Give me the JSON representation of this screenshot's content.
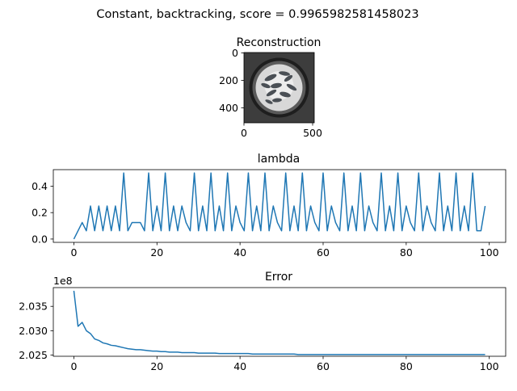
{
  "figure": {
    "suptitle": "Constant, backtracking, score = 0.9965982581458023"
  },
  "image_panel": {
    "title": "Reconstruction",
    "xticks": [
      "0",
      "500"
    ],
    "yticks": [
      "0",
      "200",
      "400"
    ],
    "description_colors": {
      "background": "#3c3c3c",
      "rim": "#1e1e1e",
      "disc": "#e6e6e6",
      "blob": "#4a4f55"
    }
  },
  "chart_data": [
    {
      "type": "line",
      "title": "lambda",
      "xlabel": "",
      "ylabel": "",
      "xlim": [
        -4.95,
        103.95
      ],
      "ylim": [
        -0.025,
        0.525
      ],
      "xticks": [
        0,
        20,
        40,
        60,
        80,
        100
      ],
      "yticks": [
        0.0,
        0.2,
        0.4
      ],
      "ytick_labels": [
        "0.0",
        "0.2",
        "0.4"
      ],
      "color": "#1f77b4",
      "x": [
        0,
        1,
        2,
        3,
        4,
        5,
        6,
        7,
        8,
        9,
        10,
        11,
        12,
        13,
        14,
        15,
        16,
        17,
        18,
        19,
        20,
        21,
        22,
        23,
        24,
        25,
        26,
        27,
        28,
        29,
        30,
        31,
        32,
        33,
        34,
        35,
        36,
        37,
        38,
        39,
        40,
        41,
        42,
        43,
        44,
        45,
        46,
        47,
        48,
        49,
        50,
        51,
        52,
        53,
        54,
        55,
        56,
        57,
        58,
        59,
        60,
        61,
        62,
        63,
        64,
        65,
        66,
        67,
        68,
        69,
        70,
        71,
        72,
        73,
        74,
        75,
        76,
        77,
        78,
        79,
        80,
        81,
        82,
        83,
        84,
        85,
        86,
        87,
        88,
        89,
        90,
        91,
        92,
        93,
        94,
        95,
        96,
        97,
        98,
        99
      ],
      "y": [
        0.0,
        0.0625,
        0.125,
        0.0625,
        0.25,
        0.0625,
        0.25,
        0.0625,
        0.25,
        0.0625,
        0.25,
        0.0625,
        0.5,
        0.0625,
        0.125,
        0.125,
        0.125,
        0.0625,
        0.5,
        0.0625,
        0.25,
        0.0625,
        0.5,
        0.0625,
        0.25,
        0.0625,
        0.25,
        0.125,
        0.0625,
        0.5,
        0.0625,
        0.25,
        0.0625,
        0.5,
        0.0625,
        0.25,
        0.0625,
        0.5,
        0.0625,
        0.25,
        0.125,
        0.0625,
        0.5,
        0.0625,
        0.25,
        0.0625,
        0.5,
        0.0625,
        0.25,
        0.125,
        0.0625,
        0.5,
        0.0625,
        0.25,
        0.0625,
        0.5,
        0.0625,
        0.25,
        0.125,
        0.0625,
        0.5,
        0.0625,
        0.25,
        0.125,
        0.0625,
        0.5,
        0.0625,
        0.25,
        0.0625,
        0.5,
        0.0625,
        0.25,
        0.125,
        0.0625,
        0.5,
        0.0625,
        0.25,
        0.0625,
        0.5,
        0.0625,
        0.25,
        0.125,
        0.0625,
        0.5,
        0.0625,
        0.25,
        0.125,
        0.0625,
        0.5,
        0.0625,
        0.25,
        0.0625,
        0.5,
        0.0625,
        0.25,
        0.0625,
        0.5,
        0.0625,
        0.0625,
        0.25
      ]
    },
    {
      "type": "line",
      "title": "Error",
      "xlabel": "",
      "ylabel": "",
      "offset_label": "1e8",
      "xlim": [
        -4.95,
        103.95
      ],
      "ylim": [
        2.02475,
        2.03885
      ],
      "xticks": [
        0,
        20,
        40,
        60,
        80,
        100
      ],
      "yticks": [
        2.025,
        2.03,
        2.035
      ],
      "ytick_labels": [
        "2.025",
        "2.030",
        "2.035"
      ],
      "color": "#1f77b4",
      "x": [
        0,
        1,
        2,
        3,
        4,
        5,
        6,
        7,
        8,
        9,
        10,
        11,
        12,
        13,
        14,
        15,
        16,
        17,
        18,
        19,
        20,
        21,
        22,
        23,
        24,
        25,
        26,
        27,
        28,
        29,
        30,
        31,
        32,
        33,
        34,
        35,
        36,
        37,
        38,
        39,
        40,
        41,
        42,
        43,
        44,
        45,
        46,
        47,
        48,
        49,
        50,
        51,
        52,
        53,
        54,
        55,
        56,
        57,
        58,
        59,
        60,
        61,
        62,
        63,
        64,
        65,
        66,
        67,
        68,
        69,
        70,
        71,
        72,
        73,
        74,
        75,
        76,
        77,
        78,
        79,
        80,
        81,
        82,
        83,
        84,
        85,
        86,
        87,
        88,
        89,
        90,
        91,
        92,
        93,
        94,
        95,
        96,
        97,
        98,
        99
      ],
      "y": [
        2.0382,
        2.0309,
        2.0317,
        2.03,
        2.0294,
        2.0283,
        2.028,
        2.0275,
        2.0273,
        2.027,
        2.0269,
        2.0267,
        2.0265,
        2.0263,
        2.0262,
        2.0261,
        2.0261,
        2.026,
        2.0259,
        2.0258,
        2.0258,
        2.0257,
        2.0257,
        2.0256,
        2.0256,
        2.0256,
        2.0255,
        2.0255,
        2.0255,
        2.0255,
        2.0254,
        2.0254,
        2.0254,
        2.0254,
        2.0254,
        2.0253,
        2.0253,
        2.0253,
        2.0253,
        2.0253,
        2.0253,
        2.0253,
        2.0253,
        2.0252,
        2.0252,
        2.0252,
        2.0252,
        2.0252,
        2.0252,
        2.0252,
        2.0252,
        2.0252,
        2.0252,
        2.0252,
        2.0251,
        2.0251,
        2.0251,
        2.0251,
        2.0251,
        2.0251,
        2.0251,
        2.0251,
        2.0251,
        2.0251,
        2.0251,
        2.0251,
        2.0251,
        2.0251,
        2.0251,
        2.0251,
        2.0251,
        2.0251,
        2.0251,
        2.0251,
        2.0251,
        2.0251,
        2.0251,
        2.0251,
        2.0251,
        2.0251,
        2.0251,
        2.0251,
        2.0251,
        2.0251,
        2.0251,
        2.0251,
        2.0251,
        2.0251,
        2.0251,
        2.0251,
        2.0251,
        2.0251,
        2.0251,
        2.0251,
        2.0251,
        2.0251,
        2.0251,
        2.0251,
        2.0251,
        2.0251
      ]
    }
  ]
}
